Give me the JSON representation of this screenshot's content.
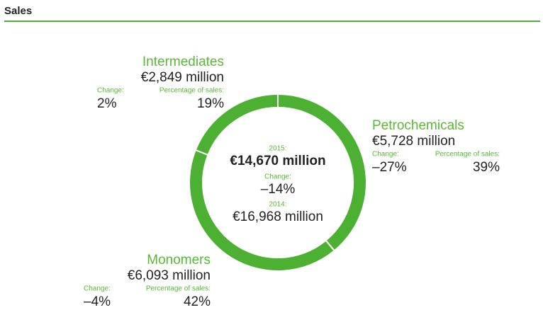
{
  "chart_data": {
    "type": "pie",
    "title": "Sales",
    "donut": true,
    "color": "#4cb032",
    "categories": [
      "Petrochemicals",
      "Monomers",
      "Intermediates"
    ],
    "values": [
      39,
      42,
      19
    ],
    "value_labels": [
      "39%",
      "42%",
      "19%"
    ],
    "amounts": [
      "€5,728 million",
      "€6,093 million",
      "€2,849 million"
    ],
    "changes": [
      "–27%",
      "–4%",
      "2%"
    ],
    "change_label": "Change:",
    "share_label": "Percentage of sales:",
    "center": {
      "current_label": "2015:",
      "current": "€14,670 million",
      "change_label": "Change:",
      "change": "–14%",
      "previous_label": "2014:",
      "previous": "€16,968 million"
    }
  }
}
